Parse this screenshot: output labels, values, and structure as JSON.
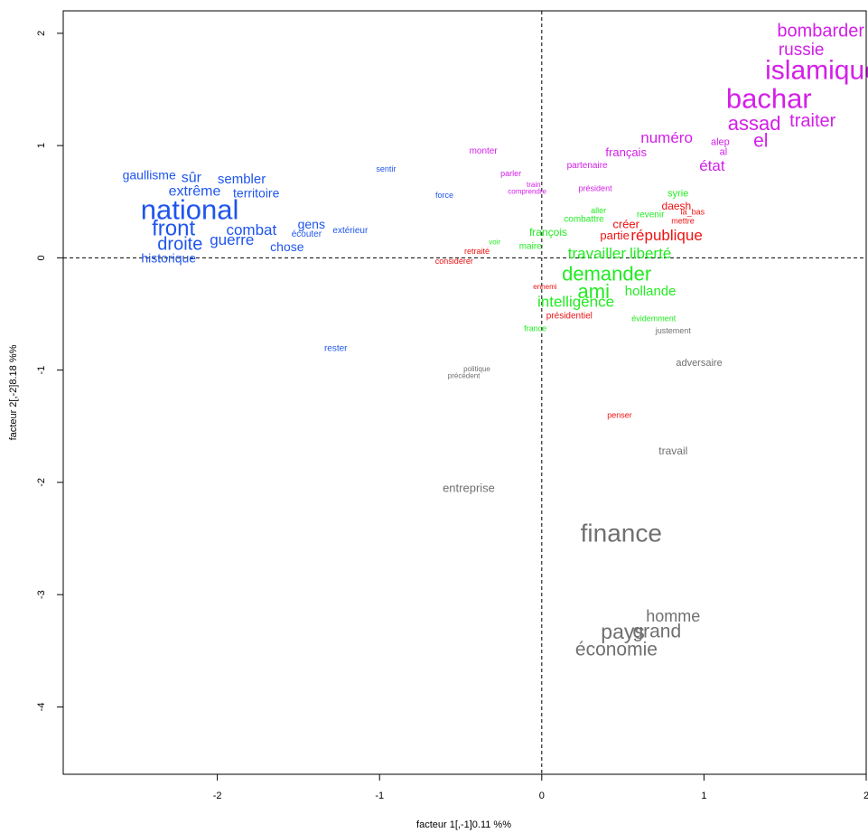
{
  "chart_data": {
    "type": "scatter",
    "subtype": "word-map",
    "xlabel": "facteur 1 (19.11 %)",
    "ylabel": "facteur 2 (18.18 %)",
    "xlabel_shown": "facteur  1[,-1]0.11 %%",
    "ylabel_shown": "facteur  2[,-2]8.18 %%",
    "xlim": [
      -2.95,
      2.0
    ],
    "ylim": [
      -4.6,
      2.2
    ],
    "x_ticks": [
      -2,
      -1,
      0,
      1,
      2
    ],
    "y_ticks": [
      -4,
      -3,
      -2,
      -1,
      0,
      1,
      2
    ],
    "grid": false,
    "reference_lines": [
      {
        "axis": "x",
        "value": 0,
        "style": "dashed"
      },
      {
        "axis": "y",
        "value": 0,
        "style": "dashed"
      }
    ],
    "class_colors": {
      "blue": "#1f55ee",
      "magenta": "#d31fe8",
      "green": "#22ec22",
      "red": "#ee1111",
      "gray": "#707070"
    },
    "words": [
      {
        "text": "bombarder",
        "x": 1.72,
        "y": 2.02,
        "cls": "magenta",
        "size": 20
      },
      {
        "text": "russie",
        "x": 1.6,
        "y": 1.85,
        "cls": "magenta",
        "size": 19
      },
      {
        "text": "islamique",
        "x": 1.73,
        "y": 1.67,
        "cls": "magenta",
        "size": 30
      },
      {
        "text": "bachar",
        "x": 1.4,
        "y": 1.42,
        "cls": "magenta",
        "size": 31
      },
      {
        "text": "assad",
        "x": 1.31,
        "y": 1.2,
        "cls": "magenta",
        "size": 22
      },
      {
        "text": "traiter",
        "x": 1.67,
        "y": 1.22,
        "cls": "magenta",
        "size": 20
      },
      {
        "text": "el",
        "x": 1.35,
        "y": 1.04,
        "cls": "magenta",
        "size": 21
      },
      {
        "text": "numéro",
        "x": 0.77,
        "y": 1.07,
        "cls": "magenta",
        "size": 17
      },
      {
        "text": "alep",
        "x": 1.1,
        "y": 1.03,
        "cls": "magenta",
        "size": 11
      },
      {
        "text": "al",
        "x": 1.12,
        "y": 0.94,
        "cls": "magenta",
        "size": 11
      },
      {
        "text": "état",
        "x": 1.05,
        "y": 0.82,
        "cls": "magenta",
        "size": 17
      },
      {
        "text": "français",
        "x": 0.52,
        "y": 0.94,
        "cls": "magenta",
        "size": 13
      },
      {
        "text": "partenaire",
        "x": 0.28,
        "y": 0.82,
        "cls": "magenta",
        "size": 10
      },
      {
        "text": "monter",
        "x": -0.36,
        "y": 0.95,
        "cls": "magenta",
        "size": 10
      },
      {
        "text": "parler",
        "x": -0.19,
        "y": 0.75,
        "cls": "magenta",
        "size": 9
      },
      {
        "text": "train",
        "x": -0.05,
        "y": 0.65,
        "cls": "magenta",
        "size": 8
      },
      {
        "text": "comprendre",
        "x": -0.09,
        "y": 0.59,
        "cls": "magenta",
        "size": 8
      },
      {
        "text": "président",
        "x": 0.33,
        "y": 0.62,
        "cls": "magenta",
        "size": 9
      },
      {
        "text": "sentir",
        "x": -0.96,
        "y": 0.79,
        "cls": "blue",
        "size": 9
      },
      {
        "text": "force",
        "x": -0.6,
        "y": 0.56,
        "cls": "blue",
        "size": 9
      },
      {
        "text": "gaullisme",
        "x": -2.42,
        "y": 0.74,
        "cls": "blue",
        "size": 14
      },
      {
        "text": "sûr",
        "x": -2.16,
        "y": 0.71,
        "cls": "blue",
        "size": 16
      },
      {
        "text": "sembler",
        "x": -1.85,
        "y": 0.7,
        "cls": "blue",
        "size": 15
      },
      {
        "text": "extrême",
        "x": -2.14,
        "y": 0.59,
        "cls": "blue",
        "size": 16
      },
      {
        "text": "territoire",
        "x": -1.76,
        "y": 0.58,
        "cls": "blue",
        "size": 14
      },
      {
        "text": "national",
        "x": -2.17,
        "y": 0.43,
        "cls": "blue",
        "size": 31
      },
      {
        "text": "front",
        "x": -2.27,
        "y": 0.26,
        "cls": "blue",
        "size": 24
      },
      {
        "text": "combat",
        "x": -1.79,
        "y": 0.25,
        "cls": "blue",
        "size": 17
      },
      {
        "text": "gens",
        "x": -1.42,
        "y": 0.3,
        "cls": "blue",
        "size": 14
      },
      {
        "text": "écouter",
        "x": -1.45,
        "y": 0.21,
        "cls": "blue",
        "size": 10
      },
      {
        "text": "extérieur",
        "x": -1.18,
        "y": 0.24,
        "cls": "blue",
        "size": 10
      },
      {
        "text": "droite",
        "x": -2.23,
        "y": 0.12,
        "cls": "blue",
        "size": 20
      },
      {
        "text": "guerre",
        "x": -1.91,
        "y": 0.16,
        "cls": "blue",
        "size": 17
      },
      {
        "text": "chose",
        "x": -1.57,
        "y": 0.1,
        "cls": "blue",
        "size": 14
      },
      {
        "text": "historique",
        "x": -2.3,
        "y": 0.0,
        "cls": "blue",
        "size": 14
      },
      {
        "text": "rester",
        "x": -1.27,
        "y": -0.81,
        "cls": "blue",
        "size": 10
      },
      {
        "text": "syrie",
        "x": 0.84,
        "y": 0.57,
        "cls": "green",
        "size": 11
      },
      {
        "text": "daesh",
        "x": 0.83,
        "y": 0.46,
        "cls": "red",
        "size": 12
      },
      {
        "text": "aller",
        "x": 0.35,
        "y": 0.42,
        "cls": "green",
        "size": 9
      },
      {
        "text": "revenir",
        "x": 0.67,
        "y": 0.38,
        "cls": "green",
        "size": 10
      },
      {
        "text": "la_bas",
        "x": 0.93,
        "y": 0.41,
        "cls": "red",
        "size": 9
      },
      {
        "text": "combattre",
        "x": 0.26,
        "y": 0.34,
        "cls": "green",
        "size": 10
      },
      {
        "text": "créer",
        "x": 0.52,
        "y": 0.3,
        "cls": "red",
        "size": 13
      },
      {
        "text": "mettre",
        "x": 0.87,
        "y": 0.33,
        "cls": "red",
        "size": 9
      },
      {
        "text": "françois",
        "x": 0.04,
        "y": 0.23,
        "cls": "green",
        "size": 12
      },
      {
        "text": "partie",
        "x": 0.45,
        "y": 0.2,
        "cls": "red",
        "size": 13
      },
      {
        "text": "république",
        "x": 0.77,
        "y": 0.2,
        "cls": "red",
        "size": 17
      },
      {
        "text": "voir",
        "x": -0.29,
        "y": 0.14,
        "cls": "green",
        "size": 8
      },
      {
        "text": "maire",
        "x": -0.07,
        "y": 0.1,
        "cls": "green",
        "size": 10
      },
      {
        "text": "retraité",
        "x": -0.4,
        "y": 0.06,
        "cls": "red",
        "size": 9
      },
      {
        "text": "travailler",
        "x": 0.34,
        "y": 0.04,
        "cls": "green",
        "size": 17
      },
      {
        "text": "liberté",
        "x": 0.67,
        "y": 0.04,
        "cls": "green",
        "size": 17
      },
      {
        "text": "considérer",
        "x": -0.54,
        "y": -0.03,
        "cls": "red",
        "size": 9
      },
      {
        "text": "demander",
        "x": 0.4,
        "y": -0.14,
        "cls": "green",
        "size": 22
      },
      {
        "text": "ami",
        "x": 0.32,
        "y": -0.3,
        "cls": "green",
        "size": 22
      },
      {
        "text": "hollande",
        "x": 0.67,
        "y": -0.3,
        "cls": "green",
        "size": 15
      },
      {
        "text": "ennemi",
        "x": 0.02,
        "y": -0.26,
        "cls": "red",
        "size": 8
      },
      {
        "text": "intelligence",
        "x": 0.21,
        "y": -0.39,
        "cls": "green",
        "size": 17
      },
      {
        "text": "présidentiel",
        "x": 0.17,
        "y": -0.52,
        "cls": "red",
        "size": 10
      },
      {
        "text": "évidemment",
        "x": 0.69,
        "y": -0.54,
        "cls": "green",
        "size": 9
      },
      {
        "text": "france",
        "x": -0.04,
        "y": -0.63,
        "cls": "green",
        "size": 9
      },
      {
        "text": "justement",
        "x": 0.81,
        "y": -0.65,
        "cls": "gray",
        "size": 9
      },
      {
        "text": "adversaire",
        "x": 0.97,
        "y": -0.94,
        "cls": "gray",
        "size": 11
      },
      {
        "text": "politique",
        "x": -0.4,
        "y": -0.99,
        "cls": "gray",
        "size": 8
      },
      {
        "text": "précédent",
        "x": -0.48,
        "y": -1.05,
        "cls": "gray",
        "size": 8
      },
      {
        "text": "penser",
        "x": 0.48,
        "y": -1.4,
        "cls": "red",
        "size": 9
      },
      {
        "text": "travail",
        "x": 0.81,
        "y": -1.72,
        "cls": "gray",
        "size": 12
      },
      {
        "text": "entreprise",
        "x": -0.45,
        "y": -2.05,
        "cls": "gray",
        "size": 13
      },
      {
        "text": "finance",
        "x": 0.49,
        "y": -2.45,
        "cls": "gray",
        "size": 28
      },
      {
        "text": "homme",
        "x": 0.81,
        "y": -3.19,
        "cls": "gray",
        "size": 18
      },
      {
        "text": "pays",
        "x": 0.5,
        "y": -3.33,
        "cls": "gray",
        "size": 23
      },
      {
        "text": "grand",
        "x": 0.71,
        "y": -3.33,
        "cls": "gray",
        "size": 21
      },
      {
        "text": "économie",
        "x": 0.46,
        "y": -3.49,
        "cls": "gray",
        "size": 21
      }
    ]
  }
}
